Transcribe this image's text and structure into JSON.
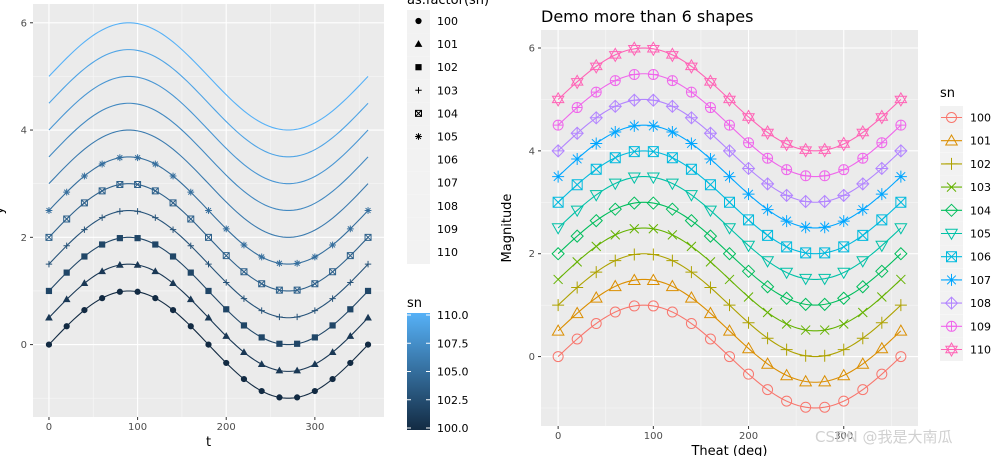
{
  "watermark": "CSDN @我是大南瓜",
  "chart_data": [
    {
      "type": "line",
      "title": "",
      "xlabel": "t",
      "ylabel": "y",
      "xlim": [
        -18,
        378
      ],
      "ylim": [
        -1.35,
        6.35
      ],
      "xticks": [
        0,
        100,
        200,
        300
      ],
      "yticks": [
        0,
        2,
        4,
        6
      ],
      "x": [
        0,
        20,
        40,
        60,
        80,
        100,
        120,
        140,
        160,
        180,
        200,
        220,
        240,
        260,
        280,
        300,
        320,
        340,
        360
      ],
      "series_function": "y = sin(t deg) + 0.5 * (sn - 100)",
      "grid": true,
      "shape_legend": {
        "title": "as.factor(sn)",
        "entries": [
          "100",
          "101",
          "102",
          "103",
          "104",
          "105",
          "106",
          "107",
          "108",
          "109",
          "110"
        ],
        "shapes": [
          "circle",
          "triangle",
          "square",
          "plus",
          "boxed-x",
          "asterisk",
          "none",
          "none",
          "none",
          "none",
          "none"
        ]
      },
      "color_legend": {
        "title": "sn",
        "labels": [
          "110.0",
          "107.5",
          "105.0",
          "102.5",
          "100.0"
        ],
        "values": [
          110,
          107.5,
          105,
          102.5,
          100
        ],
        "low_color": "#132B43",
        "high_color": "#56B1F7"
      },
      "series": [
        {
          "name": "100",
          "offset": 0
        },
        {
          "name": "101",
          "offset": 0.5
        },
        {
          "name": "102",
          "offset": 1.0
        },
        {
          "name": "103",
          "offset": 1.5
        },
        {
          "name": "104",
          "offset": 2.0
        },
        {
          "name": "105",
          "offset": 2.5
        },
        {
          "name": "106",
          "offset": 3.0
        },
        {
          "name": "107",
          "offset": 3.5
        },
        {
          "name": "108",
          "offset": 4.0
        },
        {
          "name": "109",
          "offset": 4.5
        },
        {
          "name": "110",
          "offset": 5.0
        }
      ]
    },
    {
      "type": "line",
      "title": "Demo more than 6 shapes",
      "xlabel": "Theat (deg)",
      "ylabel": "Magnitude",
      "xlim": [
        -18,
        378
      ],
      "ylim": [
        -1.35,
        6.35
      ],
      "xticks": [
        0,
        100,
        200,
        300
      ],
      "yticks": [
        0,
        2,
        4,
        6
      ],
      "x": [
        0,
        20,
        40,
        60,
        80,
        100,
        120,
        140,
        160,
        180,
        200,
        220,
        240,
        260,
        280,
        300,
        320,
        340,
        360
      ],
      "series_function": "y = sin(t deg) + 0.5 * (sn - 100)",
      "grid": true,
      "legend": {
        "title": "sn",
        "placement": "right",
        "entries": [
          "100",
          "101",
          "102",
          "103",
          "104",
          "105",
          "106",
          "107",
          "108",
          "109",
          "110"
        ]
      },
      "series": [
        {
          "name": "100",
          "offset": 0,
          "color": "#F8766D",
          "shape": "circle"
        },
        {
          "name": "101",
          "offset": 0.5,
          "color": "#DB8E00",
          "shape": "triangle"
        },
        {
          "name": "102",
          "offset": 1.0,
          "color": "#AEA200",
          "shape": "plus"
        },
        {
          "name": "103",
          "offset": 1.5,
          "color": "#64B200",
          "shape": "x"
        },
        {
          "name": "104",
          "offset": 2.0,
          "color": "#00BD5C",
          "shape": "diamond"
        },
        {
          "name": "105",
          "offset": 2.5,
          "color": "#00C1A7",
          "shape": "triangle-down"
        },
        {
          "name": "106",
          "offset": 3.0,
          "color": "#00BADE",
          "shape": "boxed-x"
        },
        {
          "name": "107",
          "offset": 3.5,
          "color": "#00A6FF",
          "shape": "asterisk"
        },
        {
          "name": "108",
          "offset": 4.0,
          "color": "#B385FF",
          "shape": "diamond-plus"
        },
        {
          "name": "109",
          "offset": 4.5,
          "color": "#EF67EB",
          "shape": "circle-plus"
        },
        {
          "name": "110",
          "offset": 5.0,
          "color": "#FF63B6",
          "shape": "star-of-david"
        }
      ]
    }
  ]
}
